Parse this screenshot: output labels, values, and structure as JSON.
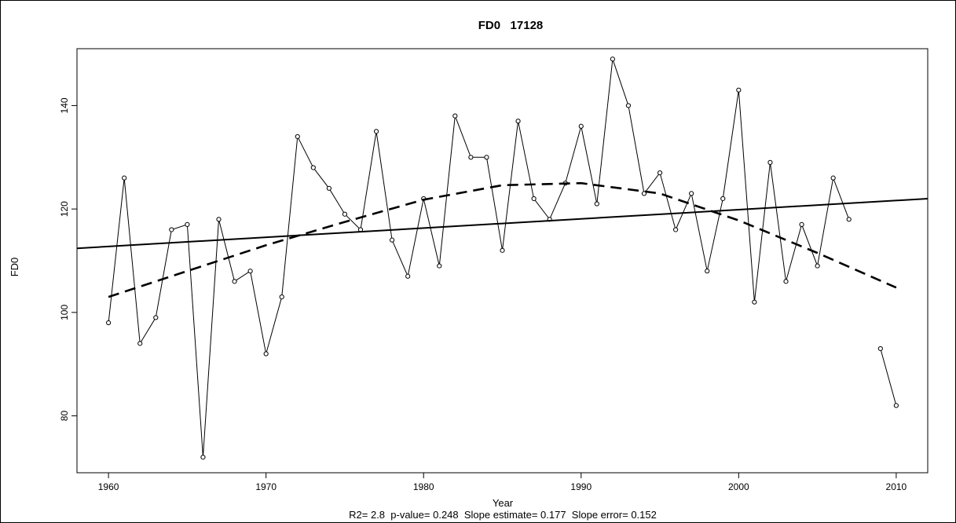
{
  "chart_data": {
    "type": "line",
    "title": "FD0   17128",
    "xlabel": "Year",
    "ylabel": "FD0",
    "subtitle": "R2= 2.8  p-value= 0.248  Slope estimate= 0.177  Slope error= 0.152",
    "xlim": [
      1958,
      2012
    ],
    "ylim": [
      69,
      151
    ],
    "xticks": [
      1960,
      1970,
      1980,
      1990,
      2000,
      2010
    ],
    "yticks": [
      80,
      100,
      120,
      140
    ],
    "grid": false,
    "x": [
      1960,
      1961,
      1962,
      1963,
      1964,
      1965,
      1966,
      1967,
      1968,
      1969,
      1970,
      1971,
      1972,
      1973,
      1974,
      1975,
      1976,
      1977,
      1978,
      1979,
      1980,
      1981,
      1982,
      1983,
      1984,
      1985,
      1986,
      1987,
      1988,
      1989,
      1990,
      1991,
      1992,
      1993,
      1994,
      1995,
      1996,
      1997,
      1998,
      1999,
      2000,
      2001,
      2002,
      2003,
      2004,
      2005,
      2006,
      2007,
      2008,
      2009,
      2010
    ],
    "series": [
      {
        "style": "solid-with-markers",
        "values": [
          98,
          126,
          94,
          99,
          116,
          117,
          72,
          118,
          106,
          108,
          92,
          103,
          134,
          128,
          124,
          119,
          116,
          135,
          114,
          107,
          122,
          109,
          138,
          130,
          130,
          112,
          137,
          122,
          118,
          125,
          136,
          121,
          149,
          140,
          123,
          127,
          116,
          123,
          108,
          122,
          143,
          102,
          129,
          106,
          117,
          109,
          126,
          118,
          null,
          93,
          82
        ]
      },
      {
        "style": "solid",
        "x": [
          1958,
          2012
        ],
        "values": [
          112.4,
          122.0
        ]
      },
      {
        "style": "dashed",
        "x": [
          1960,
          1965,
          1970,
          1975,
          1980,
          1985,
          1990,
          1995,
          2000,
          2005,
          2010
        ],
        "values": [
          103,
          108,
          113,
          117.5,
          121.8,
          124.6,
          125,
          123,
          117.8,
          111.5,
          104.8
        ]
      }
    ]
  }
}
